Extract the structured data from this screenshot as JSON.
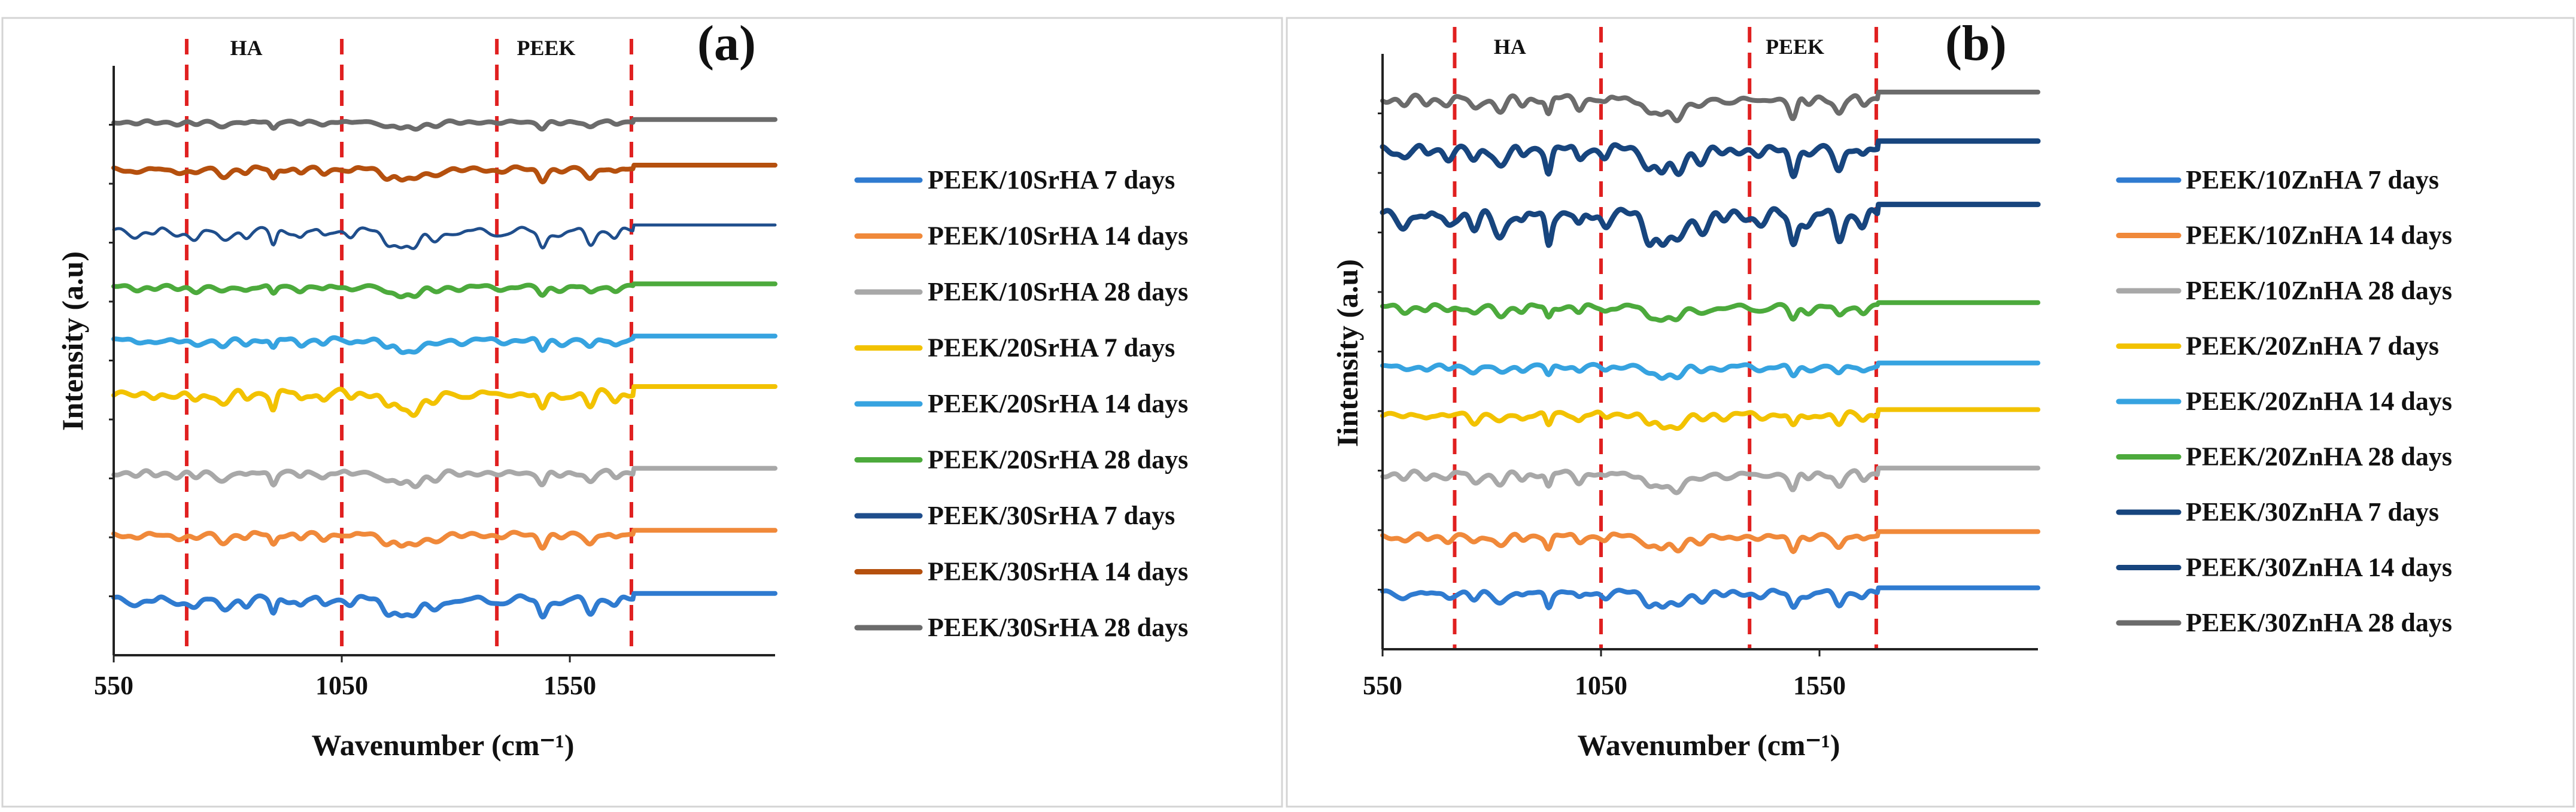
{
  "chart_data": [
    {
      "type": "line",
      "panel_label": "(a)",
      "xlabel": "Wavenumber (cm⁻¹)",
      "ylabel": "Intensity (a.u)",
      "xlim": [
        550,
        2000
      ],
      "ylim": [
        0,
        10
      ],
      "x_ticks": [
        "550",
        "1050",
        "1550"
      ],
      "x_tick_values": [
        550,
        1050,
        1550
      ],
      "grid": false,
      "legend_position": "right",
      "regions": [
        {
          "label": "HA",
          "from": 710,
          "to": 1050
        },
        {
          "label": "PEEK",
          "from": 1390,
          "to": 1685
        }
      ],
      "divider_lines": [
        710,
        1050,
        1390,
        1685
      ],
      "series": [
        {
          "name": "PEEK/10SrHA 7 days",
          "color": "#2f7bd0",
          "width": 8,
          "baseline": 0.95,
          "scale": 0.55
        },
        {
          "name": "PEEK/10SrHA 14 days",
          "color": "#f0893a",
          "width": 8,
          "baseline": 2.05,
          "scale": 0.38
        },
        {
          "name": "PEEK/10SrHA 28 days",
          "color": "#a8a8a8",
          "width": 8,
          "baseline": 3.1,
          "scale": 0.4
        },
        {
          "name": "PEEK/20SrHA 7 days",
          "color": "#f2c200",
          "width": 8,
          "baseline": 4.45,
          "scale": 0.6
        },
        {
          "name": "PEEK/20SrHA 14 days",
          "color": "#36a3e0",
          "width": 8,
          "baseline": 5.35,
          "scale": 0.36
        },
        {
          "name": "PEEK/20SrHA 28 days",
          "color": "#4caa3c",
          "width": 8,
          "baseline": 6.25,
          "scale": 0.28
        },
        {
          "name": "PEEK/30SrHA 7 days",
          "color": "#1f4e8c",
          "width": 5,
          "baseline": 7.2,
          "scale": 0.55
        },
        {
          "name": "PEEK/30SrHA 14 days",
          "color": "#b5500e",
          "width": 8,
          "baseline": 8.25,
          "scale": 0.36
        },
        {
          "name": "PEEK/30SrHA 28 days",
          "color": "#6b6b6b",
          "width": 8,
          "baseline": 9.05,
          "scale": 0.22
        }
      ]
    },
    {
      "type": "line",
      "panel_label": "(b)",
      "xlabel": "Wavenumber (cm⁻¹)",
      "ylabel": "Iintensity (a.u)",
      "xlim": [
        550,
        2050
      ],
      "ylim": [
        0,
        10
      ],
      "x_ticks": [
        "550",
        "1050",
        "1550"
      ],
      "x_tick_values": [
        550,
        1050,
        1550
      ],
      "grid": false,
      "legend_position": "right",
      "regions": [
        {
          "label": "HA",
          "from": 715,
          "to": 1050
        },
        {
          "label": "PEEK",
          "from": 1390,
          "to": 1680
        }
      ],
      "divider_lines": [
        715,
        1050,
        1390,
        1680
      ],
      "series": [
        {
          "name": "PEEK/10ZnHA 7 days",
          "color": "#2f7bd0",
          "width": 8,
          "baseline": 0.95,
          "scale": 0.45
        },
        {
          "name": "PEEK/10ZnHA 14 days",
          "color": "#f0893a",
          "width": 8,
          "baseline": 1.9,
          "scale": 0.42
        },
        {
          "name": "PEEK/10ZnHA 28 days",
          "color": "#a8a8a8",
          "width": 8,
          "baseline": 2.95,
          "scale": 0.52
        },
        {
          "name": "PEEK/20ZnHA 7 days",
          "color": "#f2c200",
          "width": 8,
          "baseline": 3.95,
          "scale": 0.42
        },
        {
          "name": "PEEK/20ZnHA 14 days",
          "color": "#36a3e0",
          "width": 8,
          "baseline": 4.75,
          "scale": 0.32
        },
        {
          "name": "PEEK/20ZnHA 28 days",
          "color": "#4caa3c",
          "width": 8,
          "baseline": 5.75,
          "scale": 0.4
        },
        {
          "name": "PEEK/30ZnHA 7 days",
          "color": "#17457e",
          "width": 9,
          "baseline": 7.3,
          "scale": 0.95
        },
        {
          "name": "PEEK/30ZnHA 14 days",
          "color": "#17457e",
          "width": 9,
          "baseline": 8.4,
          "scale": 0.75
        },
        {
          "name": "PEEK/30ZnHA 28 days",
          "color": "#6b6b6b",
          "width": 8,
          "baseline": 9.25,
          "scale": 0.6
        }
      ],
      "peak_profile": [
        {
          "x": 600,
          "depth": 0.35,
          "w": 10
        },
        {
          "x": 650,
          "depth": 0.25,
          "w": 8
        },
        {
          "x": 700,
          "depth": 0.3,
          "w": 9
        },
        {
          "x": 760,
          "depth": 0.55,
          "w": 10
        },
        {
          "x": 820,
          "depth": 0.65,
          "w": 12
        },
        {
          "x": 870,
          "depth": 0.35,
          "w": 8
        },
        {
          "x": 930,
          "depth": 0.85,
          "w": 6
        },
        {
          "x": 1000,
          "depth": 0.45,
          "w": 8
        },
        {
          "x": 1060,
          "depth": 0.3,
          "w": 8
        },
        {
          "x": 1160,
          "depth": 0.75,
          "w": 12
        },
        {
          "x": 1190,
          "depth": 0.9,
          "w": 12
        },
        {
          "x": 1225,
          "depth": 1.0,
          "w": 14
        },
        {
          "x": 1280,
          "depth": 0.5,
          "w": 12
        },
        {
          "x": 1330,
          "depth": 0.25,
          "w": 10
        },
        {
          "x": 1415,
          "depth": 0.3,
          "w": 12
        },
        {
          "x": 1490,
          "depth": 0.95,
          "w": 8
        },
        {
          "x": 1525,
          "depth": 0.35,
          "w": 10
        },
        {
          "x": 1595,
          "depth": 0.75,
          "w": 9
        },
        {
          "x": 1650,
          "depth": 0.4,
          "w": 8
        }
      ]
    }
  ]
}
